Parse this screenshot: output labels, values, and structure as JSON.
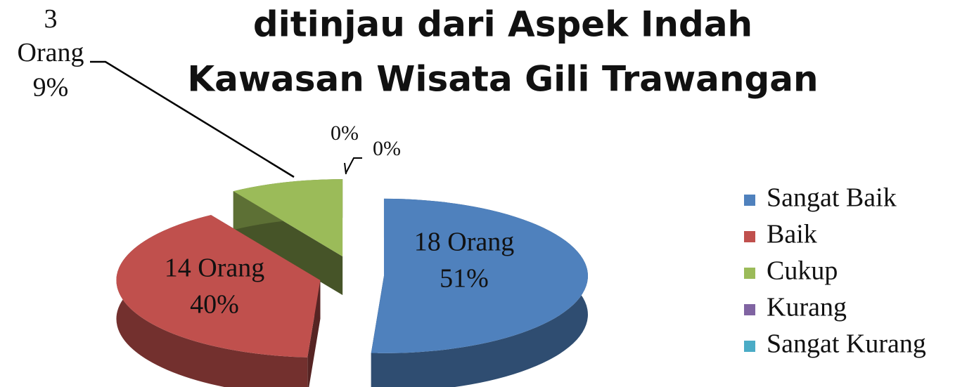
{
  "chart_data": {
    "type": "pie",
    "title_lines": [
      "ditinjau dari Aspek Indah",
      "Kawasan Wisata Gili Trawangan"
    ],
    "categories": [
      "Sangat Baik",
      "Baik",
      "Cukup",
      "Kurang",
      "Sangat Kurang"
    ],
    "values": [
      51,
      40,
      9,
      0,
      0
    ],
    "value_labels": [
      "51%",
      "40%",
      "9%",
      "0%",
      "0%"
    ],
    "count_labels": [
      "18 Orang",
      "14 Orang",
      "3 Orang",
      null,
      null
    ],
    "colors": [
      "#4f81bd",
      "#c0504d",
      "#9bbb59",
      "#8064a2",
      "#4bacc6"
    ],
    "legend": "right"
  }
}
